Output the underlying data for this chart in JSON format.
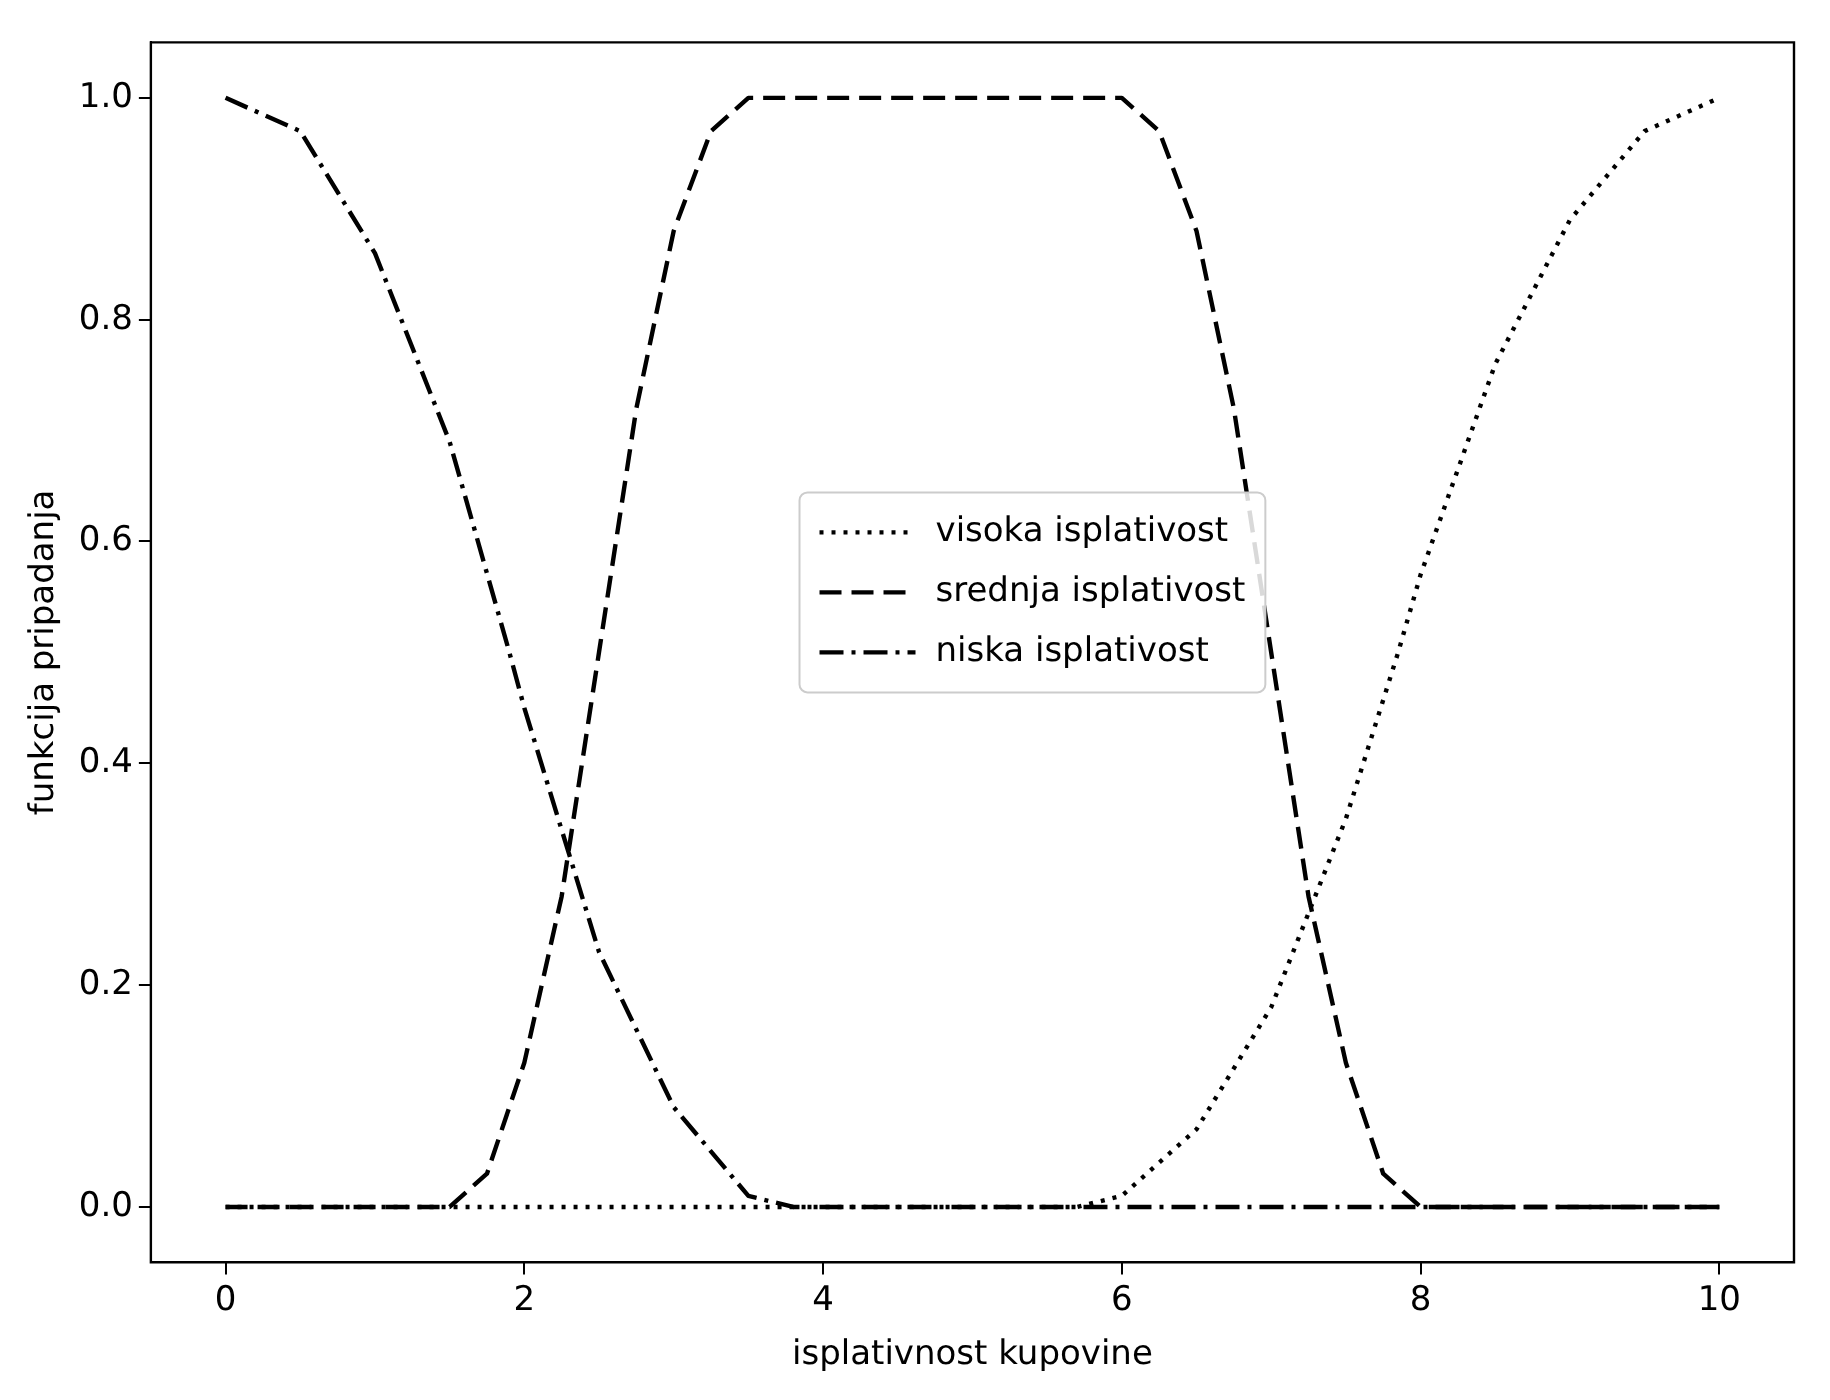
{
  "chart_data": {
    "type": "line",
    "xlabel": "isplativnost kupovine",
    "ylabel": "funkcija pripadanja",
    "xlim": [
      -0.5,
      10.5
    ],
    "xticks": [
      0,
      2,
      4,
      6,
      8,
      10
    ],
    "ylim": [
      -0.05,
      1.05
    ],
    "yticks": [
      {
        "value": 0,
        "label": "0.0"
      },
      {
        "value": 0.2,
        "label": "0.2"
      },
      {
        "value": 0.4,
        "label": "0.4"
      },
      {
        "value": 0.6,
        "label": "0.6"
      },
      {
        "value": 0.8,
        "label": "0.8"
      },
      {
        "value": 1,
        "label": "1.0"
      }
    ],
    "grid": false,
    "legend": "center",
    "marker": "none",
    "series": [
      {
        "name": "visoka isplativost",
        "color": "#000000",
        "line_style": "dotted",
        "x": [
          0,
          5.7,
          6,
          6.5,
          7,
          7.5,
          7.85,
          8,
          8.5,
          9,
          9.5,
          10
        ],
        "values": [
          0,
          0,
          0.01,
          0.07,
          0.18,
          0.35,
          0.5,
          0.57,
          0.76,
          0.89,
          0.97,
          1
        ]
      },
      {
        "name": "srednja isplativost",
        "color": "#000000",
        "line_style": "dashed",
        "x": [
          0,
          1.5,
          1.75,
          2,
          2.25,
          2.5,
          2.75,
          3,
          3.25,
          3.5,
          6,
          6.25,
          6.5,
          6.75,
          7,
          7.25,
          7.5,
          7.75,
          8,
          10
        ],
        "values": [
          0,
          0,
          0.03,
          0.13,
          0.28,
          0.5,
          0.72,
          0.88,
          0.97,
          1,
          1,
          0.97,
          0.88,
          0.72,
          0.5,
          0.28,
          0.13,
          0.03,
          0,
          0
        ]
      },
      {
        "name": "niska isplativost",
        "color": "#000000",
        "line_style": "dashdot",
        "x": [
          0,
          0.5,
          1,
          1.5,
          1.9,
          2,
          2.5,
          3,
          3.5,
          3.8,
          10
        ],
        "values": [
          1,
          0.97,
          0.86,
          0.69,
          0.5,
          0.45,
          0.23,
          0.09,
          0.01,
          0,
          0
        ]
      }
    ]
  }
}
